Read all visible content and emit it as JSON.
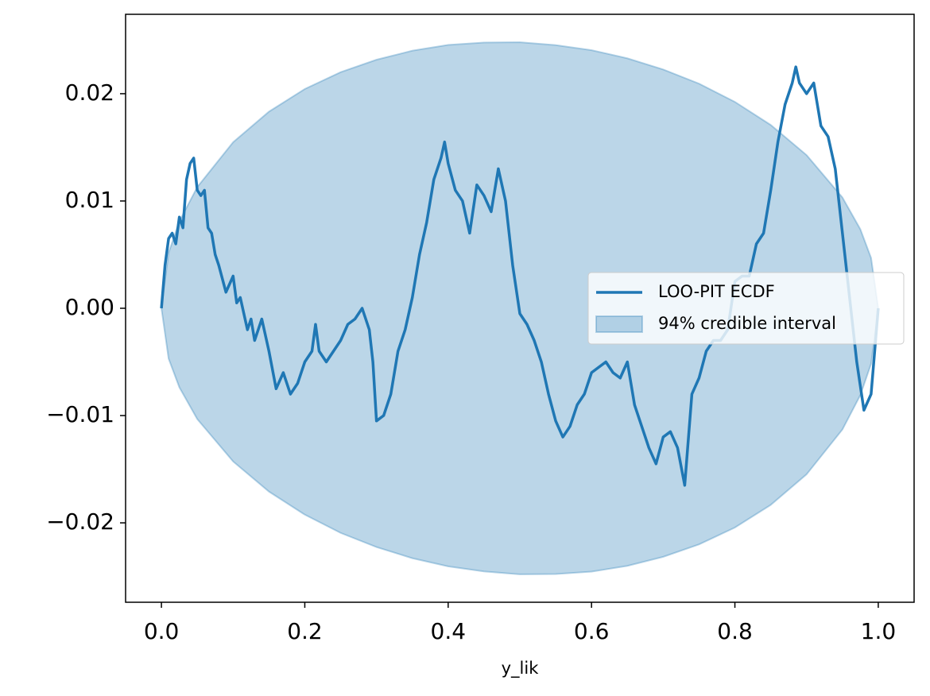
{
  "chart_data": {
    "type": "line",
    "xlabel": "y_lik",
    "xlim": [
      -0.05,
      1.05
    ],
    "ylim": [
      -0.0274,
      0.0274
    ],
    "xticks": [
      {
        "value": 0,
        "label": "0.0"
      },
      {
        "value": 0.2,
        "label": "0.2"
      },
      {
        "value": 0.4,
        "label": "0.4"
      },
      {
        "value": 0.6,
        "label": "0.6"
      },
      {
        "value": 0.8,
        "label": "0.8"
      },
      {
        "value": 1,
        "label": "1.0"
      }
    ],
    "yticks": [
      {
        "value": -0.02,
        "label": "−0.02"
      },
      {
        "value": -0.01,
        "label": "−0.01"
      },
      {
        "value": 0,
        "label": "0.00"
      },
      0.01,
      0.02
    ],
    "legend": "center right",
    "series": [
      {
        "name": "LOO-PIT ECDF",
        "color": "#1f77b4",
        "x": [
          0,
          0.005,
          0.01,
          0.015,
          0.02,
          0.025,
          0.03,
          0.035,
          0.04,
          0.045,
          0.05,
          0.055,
          0.06,
          0.065,
          0.07,
          0.075,
          0.08,
          0.09,
          0.1,
          0.105,
          0.11,
          0.12,
          0.125,
          0.13,
          0.14,
          0.15,
          0.16,
          0.17,
          0.18,
          0.19,
          0.2,
          0.21,
          0.215,
          0.22,
          0.23,
          0.24,
          0.25,
          0.26,
          0.27,
          0.28,
          0.29,
          0.295,
          0.3,
          0.31,
          0.32,
          0.33,
          0.34,
          0.35,
          0.36,
          0.37,
          0.38,
          0.39,
          0.395,
          0.4,
          0.41,
          0.42,
          0.43,
          0.44,
          0.45,
          0.46,
          0.47,
          0.48,
          0.49,
          0.5,
          0.51,
          0.52,
          0.53,
          0.54,
          0.55,
          0.56,
          0.57,
          0.58,
          0.59,
          0.6,
          0.61,
          0.62,
          0.63,
          0.64,
          0.65,
          0.66,
          0.67,
          0.68,
          0.69,
          0.7,
          0.71,
          0.72,
          0.73,
          0.74,
          0.75,
          0.76,
          0.77,
          0.78,
          0.79,
          0.8,
          0.81,
          0.82,
          0.83,
          0.84,
          0.85,
          0.86,
          0.87,
          0.88,
          0.885,
          0.89,
          0.9,
          0.91,
          0.92,
          0.93,
          0.94,
          0.95,
          0.96,
          0.97,
          0.98,
          0.99,
          1
        ],
        "values": [
          0,
          0.004,
          0.0065,
          0.007,
          0.006,
          0.0085,
          0.0075,
          0.012,
          0.0135,
          0.014,
          0.011,
          0.0105,
          0.011,
          0.0075,
          0.007,
          0.005,
          0.004,
          0.0015,
          0.003,
          0.0005,
          0.001,
          -0.002,
          -0.001,
          -0.003,
          -0.001,
          -0.004,
          -0.0075,
          -0.006,
          -0.008,
          -0.007,
          -0.005,
          -0.004,
          -0.0015,
          -0.004,
          -0.005,
          -0.004,
          -0.003,
          -0.0015,
          -0.001,
          0,
          -0.002,
          -0.005,
          -0.0105,
          -0.01,
          -0.008,
          -0.004,
          -0.002,
          0.001,
          0.005,
          0.008,
          0.012,
          0.014,
          0.0155,
          0.0135,
          0.011,
          0.01,
          0.007,
          0.0115,
          0.0105,
          0.009,
          0.013,
          0.01,
          0.004,
          -0.0005,
          -0.0015,
          -0.003,
          -0.005,
          -0.008,
          -0.0105,
          -0.012,
          -0.011,
          -0.009,
          -0.008,
          -0.006,
          -0.0055,
          -0.005,
          -0.006,
          -0.0065,
          -0.005,
          -0.009,
          -0.011,
          -0.013,
          -0.0145,
          -0.012,
          -0.0115,
          -0.013,
          -0.0165,
          -0.008,
          -0.0065,
          -0.004,
          -0.003,
          -0.003,
          -0.002,
          0.0025,
          0.003,
          0.003,
          0.006,
          0.007,
          0.011,
          0.0155,
          0.019,
          0.021,
          0.0225,
          0.021,
          0.02,
          0.021,
          0.017,
          0.016,
          0.013,
          0.007,
          0.001,
          -0.005,
          -0.0095,
          -0.008,
          0
        ]
      }
    ],
    "band": {
      "name": "94% credible interval",
      "color": "#1f77b4",
      "x": [
        0,
        0.01,
        0.025,
        0.05,
        0.1,
        0.15,
        0.2,
        0.25,
        0.3,
        0.35,
        0.4,
        0.45,
        0.5,
        0.55,
        0.6,
        0.65,
        0.7,
        0.75,
        0.8,
        0.85,
        0.9,
        0.95,
        0.975,
        0.99,
        1
      ],
      "upper": [
        0,
        0.00518,
        0.0081,
        0.0113,
        0.01548,
        0.01833,
        0.02044,
        0.02201,
        0.02317,
        0.02401,
        0.02455,
        0.02477,
        0.0248,
        0.02453,
        0.02406,
        0.0233,
        0.02226,
        0.02094,
        0.01924,
        0.01709,
        0.01428,
        0.01033,
        0.00737,
        0.00469,
        0
      ],
      "lower": [
        0,
        -0.00469,
        -0.00737,
        -0.01033,
        -0.01428,
        -0.01709,
        -0.01924,
        -0.02094,
        -0.02226,
        -0.0233,
        -0.02406,
        -0.02453,
        -0.0248,
        -0.02477,
        -0.02455,
        -0.02401,
        -0.02317,
        -0.02201,
        -0.02044,
        -0.01833,
        -0.01548,
        -0.0113,
        -0.0081,
        -0.00518,
        0
      ]
    }
  }
}
